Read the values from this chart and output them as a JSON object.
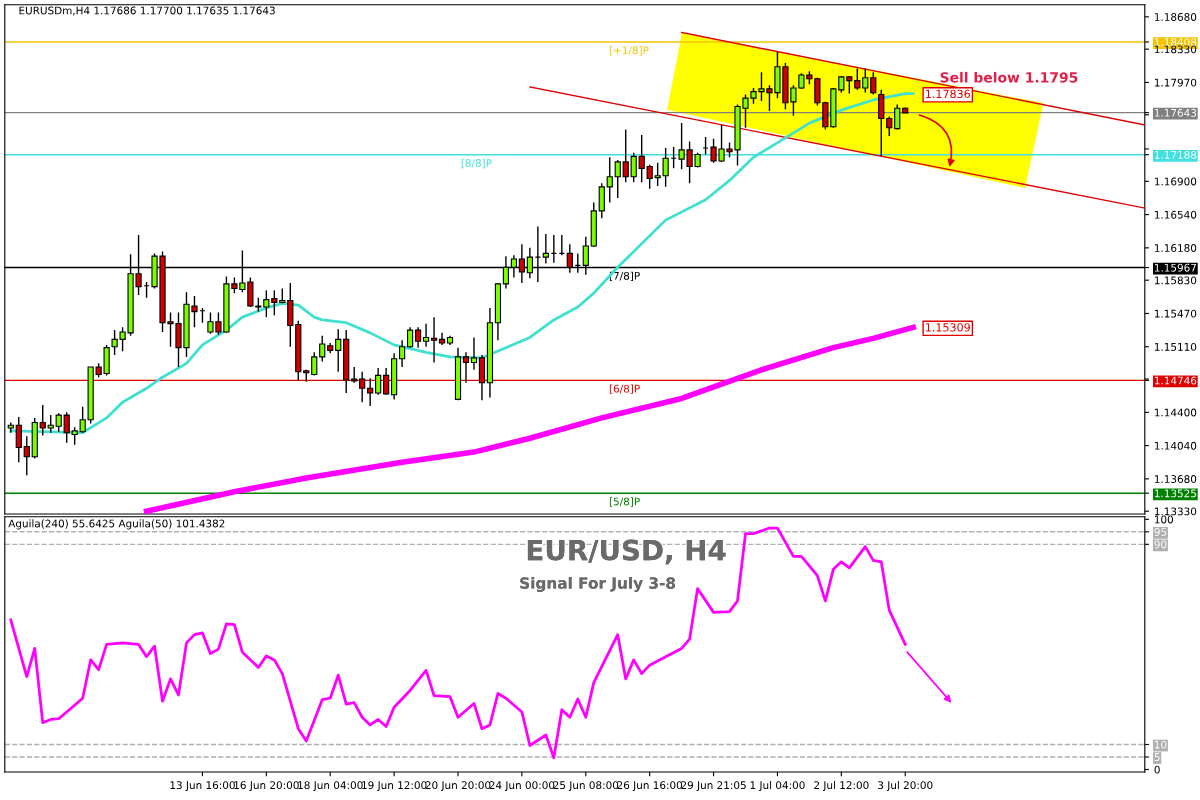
{
  "chart_data": [
    {
      "type": "candlestick",
      "title": "EURUSDm,H4 1.17686 1.17700 1.17635 1.17643",
      "categories": [
        null,
        null,
        null,
        null,
        null,
        null,
        null,
        null,
        null,
        null,
        null,
        null,
        null,
        null,
        null,
        null,
        null,
        null,
        null,
        null,
        null,
        null,
        null,
        null,
        null,
        null,
        null,
        null,
        null,
        null,
        null,
        null,
        null,
        null,
        null,
        null,
        null,
        null,
        null,
        null,
        null,
        null,
        null,
        null,
        null,
        null,
        null,
        null,
        null,
        null,
        null,
        null,
        null,
        null,
        null,
        null,
        null,
        null,
        null,
        null,
        null,
        null,
        null,
        null,
        null,
        null,
        null,
        null,
        null,
        null,
        null,
        null,
        null,
        null,
        null,
        null,
        null,
        null,
        null,
        null,
        null,
        null,
        null,
        null,
        null,
        null,
        null,
        null,
        null,
        null,
        null,
        null,
        null,
        null,
        null,
        null,
        null,
        null,
        null,
        null,
        null,
        null,
        null,
        null,
        null,
        null,
        null,
        null,
        null,
        null,
        null,
        null,
        null,
        null,
        null,
        null,
        null,
        null,
        null,
        null,
        null,
        null,
        null,
        null,
        null,
        null,
        null,
        null,
        null,
        null,
        null,
        null,
        null,
        null,
        null,
        null,
        null,
        null,
        null,
        null,
        null,
        null,
        null
      ],
      "ohlc": [
        [
          1.1423,
          1.1429,
          1.1418,
          1.1426
        ],
        [
          1.1426,
          1.1435,
          1.1386,
          1.1402
        ],
        [
          1.1403,
          1.1414,
          1.1372,
          1.1392
        ],
        [
          1.1392,
          1.1434,
          1.139,
          1.1429
        ],
        [
          1.1429,
          1.1448,
          1.1415,
          1.1423
        ],
        [
          1.1423,
          1.1437,
          1.1418,
          1.1426
        ],
        [
          1.1425,
          1.1439,
          1.1419,
          1.1437
        ],
        [
          1.1437,
          1.144,
          1.1407,
          1.1418
        ],
        [
          1.1416,
          1.1424,
          1.1405,
          1.142
        ],
        [
          1.1419,
          1.1446,
          1.1418,
          1.1432
        ],
        [
          1.1432,
          1.1489,
          1.1428,
          1.1489
        ],
        [
          1.1489,
          1.1493,
          1.1478,
          1.1481
        ],
        [
          1.1482,
          1.1513,
          1.148,
          1.151
        ],
        [
          1.1511,
          1.1529,
          1.1502,
          1.1519
        ],
        [
          1.1519,
          1.1532,
          1.1506,
          1.1527
        ],
        [
          1.1526,
          1.1611,
          1.1523,
          1.159
        ],
        [
          1.159,
          1.1632,
          1.1567,
          1.1576
        ],
        [
          1.1577,
          1.1581,
          1.1564,
          1.1577
        ],
        [
          1.1576,
          1.1612,
          1.1574,
          1.1609
        ],
        [
          1.1609,
          1.1614,
          1.1527,
          1.1537
        ],
        [
          1.1538,
          1.1548,
          1.1511,
          1.1536
        ],
        [
          1.1536,
          1.1548,
          1.1489,
          1.151
        ],
        [
          1.151,
          1.157,
          1.15,
          1.1557
        ],
        [
          1.1555,
          1.1566,
          1.1532,
          1.1549
        ],
        [
          1.155,
          1.1553,
          1.1537,
          1.155
        ],
        [
          1.1527,
          1.1548,
          1.1525,
          1.1538
        ],
        [
          1.1538,
          1.1548,
          1.1524,
          1.1527
        ],
        [
          1.1527,
          1.1587,
          1.1526,
          1.1579
        ],
        [
          1.1579,
          1.1586,
          1.1569,
          1.1574
        ],
        [
          1.1573,
          1.1615,
          1.157,
          1.158
        ],
        [
          1.1581,
          1.1586,
          1.1554,
          1.1555
        ],
        [
          1.1555,
          1.1564,
          1.1549,
          1.1554
        ],
        [
          1.1554,
          1.1572,
          1.1543,
          1.1562
        ],
        [
          1.1563,
          1.1572,
          1.1545,
          1.1559
        ],
        [
          1.1559,
          1.1574,
          1.1558,
          1.1561
        ],
        [
          1.1561,
          1.158,
          1.1511,
          1.1534
        ],
        [
          1.1535,
          1.1539,
          1.1474,
          1.1484
        ],
        [
          1.1485,
          1.1486,
          1.1473,
          1.1483
        ],
        [
          1.1481,
          1.1505,
          1.148,
          1.15
        ],
        [
          1.15,
          1.1523,
          1.1495,
          1.1514
        ],
        [
          1.1512,
          1.1515,
          1.1504,
          1.1507
        ],
        [
          1.1507,
          1.153,
          1.1484,
          1.1519
        ],
        [
          1.1519,
          1.1529,
          1.1461,
          1.1475
        ],
        [
          1.1476,
          1.1489,
          1.1472,
          1.1474
        ],
        [
          1.1476,
          1.1484,
          1.1451,
          1.1466
        ],
        [
          1.1466,
          1.1477,
          1.1447,
          1.1461
        ],
        [
          1.1461,
          1.1488,
          1.1459,
          1.148
        ],
        [
          1.148,
          1.1488,
          1.1459,
          1.146
        ],
        [
          1.1459,
          1.1504,
          1.1454,
          1.1498
        ],
        [
          1.1498,
          1.1518,
          1.1489,
          1.1511
        ],
        [
          1.1511,
          1.1532,
          1.151,
          1.1529
        ],
        [
          1.1529,
          1.1532,
          1.151,
          1.1517
        ],
        [
          1.1517,
          1.1536,
          1.1511,
          1.1521
        ],
        [
          1.152,
          1.1543,
          1.1494,
          1.1518
        ],
        [
          1.1519,
          1.1526,
          1.1513,
          1.1515
        ],
        [
          1.1515,
          1.1523,
          1.1513,
          1.1521
        ],
        [
          1.1454,
          1.151,
          1.1453,
          1.15
        ],
        [
          1.15,
          1.1505,
          1.1472,
          1.1494
        ],
        [
          1.1494,
          1.1521,
          1.1486,
          1.1499
        ],
        [
          1.1499,
          1.1502,
          1.1453,
          1.1472
        ],
        [
          1.1472,
          1.1553,
          1.1456,
          1.1537
        ],
        [
          1.1537,
          1.158,
          1.1518,
          1.1579
        ],
        [
          1.1579,
          1.1609,
          1.1574,
          1.1597
        ],
        [
          1.1597,
          1.161,
          1.1586,
          1.1606
        ],
        [
          1.1606,
          1.1622,
          1.158,
          1.1592
        ],
        [
          1.1591,
          1.1618,
          1.1585,
          1.1608
        ],
        [
          1.1608,
          1.1641,
          1.1581,
          1.1608
        ],
        [
          1.1608,
          1.1633,
          1.1601,
          1.1612
        ],
        [
          1.1612,
          1.1632,
          1.1602,
          1.1612
        ],
        [
          1.1612,
          1.1632,
          1.161,
          1.1612
        ],
        [
          1.1612,
          1.1622,
          1.1591,
          1.1597
        ],
        [
          1.1599,
          1.1612,
          1.1591,
          1.1599
        ],
        [
          1.1599,
          1.163,
          1.1589,
          1.162
        ],
        [
          1.162,
          1.1667,
          1.1619,
          1.1658
        ],
        [
          1.1658,
          1.1688,
          1.165,
          1.1684
        ],
        [
          1.1684,
          1.1716,
          1.1667,
          1.1695
        ],
        [
          1.1695,
          1.1713,
          1.1672,
          1.1711
        ],
        [
          1.1711,
          1.1746,
          1.1689,
          1.1695
        ],
        [
          1.1695,
          1.1721,
          1.1689,
          1.1717
        ],
        [
          1.1717,
          1.174,
          1.1689,
          1.1704
        ],
        [
          1.1706,
          1.1708,
          1.1682,
          1.1693
        ],
        [
          1.1694,
          1.171,
          1.1685,
          1.1696
        ],
        [
          1.1696,
          1.1726,
          1.1684,
          1.1715
        ],
        [
          1.1715,
          1.1727,
          1.1704,
          1.1715
        ],
        [
          1.1714,
          1.1753,
          1.1703,
          1.1724
        ],
        [
          1.1724,
          1.1733,
          1.1688,
          1.1706
        ],
        [
          1.1706,
          1.1721,
          1.1705,
          1.1719
        ],
        [
          1.1726,
          1.1738,
          1.1719,
          1.1726
        ],
        [
          1.1727,
          1.1736,
          1.171,
          1.1712
        ],
        [
          1.1712,
          1.1751,
          1.1711,
          1.1725
        ],
        [
          1.1725,
          1.1732,
          1.1716,
          1.1722
        ],
        [
          1.1724,
          1.1773,
          1.1707,
          1.1771
        ],
        [
          1.1769,
          1.1784,
          1.1748,
          1.178
        ],
        [
          1.178,
          1.1791,
          1.1774,
          1.1787
        ],
        [
          1.1787,
          1.1808,
          1.1777,
          1.179
        ],
        [
          1.179,
          1.1794,
          1.1766,
          1.1786
        ],
        [
          1.1786,
          1.183,
          1.178,
          1.1814
        ],
        [
          1.1814,
          1.1818,
          1.1768,
          1.1775
        ],
        [
          1.1776,
          1.1794,
          1.1761,
          1.1791
        ],
        [
          1.1791,
          1.1807,
          1.179,
          1.1805
        ],
        [
          1.1805,
          1.1809,
          1.1795,
          1.1801
        ],
        [
          1.1801,
          1.1802,
          1.1772,
          1.1775
        ],
        [
          1.1775,
          1.1776,
          1.1746,
          1.1749
        ],
        [
          1.1749,
          1.1791,
          1.1748,
          1.179
        ],
        [
          1.1789,
          1.1804,
          1.1786,
          1.1803
        ],
        [
          1.1803,
          1.1804,
          1.1785,
          1.1799
        ],
        [
          1.1799,
          1.1812,
          1.1789,
          1.1791
        ],
        [
          1.1791,
          1.1812,
          1.1786,
          1.1802
        ],
        [
          1.1802,
          1.1808,
          1.1784,
          1.1786
        ],
        [
          1.1784,
          1.1789,
          1.1717,
          1.1758
        ],
        [
          1.1758,
          1.176,
          1.1739,
          1.1748
        ],
        [
          1.1747,
          1.1773,
          1.1746,
          1.1769
        ],
        [
          1.1769,
          1.177,
          1.1764,
          1.1764
        ],
        null,
        null,
        null,
        null,
        null,
        null,
        null,
        null,
        null,
        null,
        null,
        null,
        null,
        null,
        null,
        null,
        null,
        null,
        null,
        null,
        null,
        null,
        null,
        null,
        null,
        null,
        null,
        null,
        null,
        null
      ],
      "colors": [
        "#7cfc00",
        "#d00000",
        "#d00000",
        "#7cfc00",
        "#d00000",
        "#7cfc00",
        "#7cfc00",
        "#d00000",
        "#7cfc00",
        "#7cfc00",
        "#7cfc00",
        "#d00000",
        "#7cfc00",
        "#7cfc00",
        "#7cfc00",
        "#7cfc00",
        "#d00000",
        "#000000",
        "#7cfc00",
        "#d00000",
        "#d00000",
        "#d00000",
        "#7cfc00",
        "#d00000",
        "#000000",
        "#7cfc00",
        "#d00000",
        "#7cfc00",
        "#d00000",
        "#7cfc00",
        "#d00000",
        "#d00000",
        "#7cfc00",
        "#d00000",
        "#7cfc00",
        "#d00000",
        "#d00000",
        "#d00000",
        "#7cfc00",
        "#7cfc00",
        "#d00000",
        "#7cfc00",
        "#d00000",
        "#d00000",
        "#d00000",
        "#d00000",
        "#7cfc00",
        "#d00000",
        "#7cfc00",
        "#7cfc00",
        "#7cfc00",
        "#d00000",
        "#7cfc00",
        "#d00000",
        "#d00000",
        "#7cfc00",
        "#7cfc00",
        "#d00000",
        "#7cfc00",
        "#d00000",
        "#7cfc00",
        "#7cfc00",
        "#7cfc00",
        "#7cfc00",
        "#d00000",
        "#7cfc00",
        "#000000",
        "#7cfc00",
        "#000000",
        "#000000",
        "#d00000",
        "#000000",
        "#7cfc00",
        "#7cfc00",
        "#7cfc00",
        "#7cfc00",
        "#7cfc00",
        "#d00000",
        "#7cfc00",
        "#d00000",
        "#d00000",
        "#7cfc00",
        "#7cfc00",
        "#000000",
        "#7cfc00",
        "#d00000",
        "#7cfc00",
        "#000000",
        "#d00000",
        "#7cfc00",
        "#d00000",
        "#7cfc00",
        "#7cfc00",
        "#7cfc00",
        "#7cfc00",
        "#d00000",
        "#7cfc00",
        "#d00000",
        "#7cfc00",
        "#7cfc00",
        "#d00000",
        "#d00000",
        "#d00000",
        "#7cfc00",
        "#7cfc00",
        "#d00000",
        "#d00000",
        "#7cfc00",
        "#d00000",
        "#d00000",
        "#d00000",
        "#7cfc00",
        "#d00000",
        null,
        null,
        null,
        null,
        null,
        null,
        null,
        null,
        null,
        null,
        null,
        null,
        null,
        null,
        null,
        null,
        null,
        null,
        null,
        null,
        null,
        null,
        null,
        null,
        null,
        null,
        null,
        null,
        null,
        null
      ],
      "series": [
        {
          "type": "line",
          "color": "#e00000",
          "values": [
            null,
            null,
            null,
            null,
            null,
            null,
            null,
            null,
            null,
            null,
            null,
            null,
            null,
            null,
            null,
            null,
            null,
            null,
            null,
            null,
            null,
            null,
            null,
            null,
            null,
            null,
            null,
            null,
            null,
            null,
            null,
            null,
            null,
            null,
            null,
            null,
            null,
            null,
            null,
            null,
            null,
            null,
            null,
            null,
            null,
            null,
            null,
            null,
            null,
            null,
            null,
            null,
            null,
            null,
            null,
            null,
            null,
            null,
            null,
            null,
            null,
            null,
            null,
            null,
            null,
            null,
            null,
            null,
            null,
            null,
            null,
            null,
            null,
            null,
            null,
            null,
            null,
            null,
            null,
            null,
            null,
            null,
            null,
            null,
            1.1851,
            null,
            null,
            null,
            null,
            null,
            null,
            null,
            null,
            null,
            null,
            null,
            null,
            null,
            null,
            null,
            null,
            null,
            null,
            null,
            null,
            null,
            null,
            null,
            null,
            null,
            null,
            null,
            null,
            null,
            null,
            null,
            null,
            null,
            null,
            null,
            null,
            null,
            null,
            null,
            null,
            null,
            null,
            null,
            null,
            null,
            null,
            null,
            null,
            null,
            null,
            null,
            null,
            null,
            null,
            null,
            null,
            null,
            1.1751
          ]
        },
        {
          "type": "line",
          "color": "#e00000",
          "values": [
            null,
            null,
            null,
            null,
            null,
            null,
            null,
            null,
            null,
            null,
            null,
            null,
            null,
            null,
            null,
            null,
            null,
            null,
            null,
            null,
            null,
            null,
            null,
            null,
            null,
            null,
            null,
            null,
            null,
            null,
            null,
            null,
            null,
            null,
            null,
            null,
            null,
            null,
            null,
            null,
            null,
            null,
            null,
            null,
            null,
            null,
            null,
            null,
            null,
            null,
            null,
            null,
            null,
            null,
            null,
            null,
            null,
            null,
            null,
            null,
            null,
            null,
            null,
            null,
            null,
            1.1792,
            null,
            null,
            null,
            null,
            null,
            null,
            null,
            null,
            null,
            null,
            null,
            null,
            null,
            null,
            null,
            null,
            null,
            null,
            null,
            null,
            null,
            null,
            null,
            null,
            null,
            null,
            null,
            null,
            null,
            null,
            null,
            null,
            null,
            null,
            null,
            null,
            null,
            null,
            null,
            null,
            null,
            null,
            null,
            null,
            null,
            null,
            null,
            null,
            null,
            null,
            null,
            null,
            null,
            null,
            null,
            null,
            null,
            null,
            null,
            null,
            null,
            null,
            null,
            null,
            null,
            null,
            null,
            null,
            null,
            null,
            null,
            null,
            null,
            null,
            null,
            null,
            1.1661
          ]
        },
        {
          "type": "line",
          "color": "#40e0d0",
          "values": [
            1.142,
            null,
            null,
            null,
            null,
            null,
            null,
            null,
            null,
            1.1418,
            null,
            null,
            1.1434,
            null,
            1.1451,
            null,
            null,
            1.1466,
            null,
            1.1478,
            null,
            null,
            1.1493,
            null,
            1.1513,
            null,
            null,
            1.1529,
            null,
            1.1543,
            null,
            null,
            1.1553,
            null,
            1.1558,
            null,
            1.1556,
            null,
            1.1543,
            1.154,
            null,
            null,
            1.1537,
            null,
            null,
            1.1526,
            null,
            null,
            1.1513,
            null,
            null,
            null,
            1.1505,
            null,
            null,
            1.15,
            null,
            null,
            null,
            1.1499,
            null,
            null,
            1.151,
            null,
            null,
            1.1521,
            null,
            null,
            1.154,
            null,
            null,
            1.1554,
            null,
            1.1569,
            null,
            null,
            1.1597,
            null,
            null,
            null,
            null,
            null,
            1.1648,
            null,
            null,
            null,
            null,
            1.167,
            null,
            null,
            1.1691,
            null,
            null,
            1.1716,
            null,
            null,
            null,
            1.1737,
            null,
            null,
            1.1753,
            null,
            null,
            null,
            1.1767,
            null,
            null,
            null,
            1.1778,
            null,
            null,
            null,
            1.1785,
            1.1785,
            null,
            null,
            null,
            null,
            null,
            null,
            null,
            null,
            null,
            null,
            null,
            null,
            null,
            null,
            null,
            null,
            null,
            null,
            null,
            null,
            null,
            null,
            null,
            null,
            null,
            null,
            null,
            null,
            null
          ]
        },
        {
          "type": "line",
          "color": "#ff00ff",
          "values": [
            null,
            null,
            null,
            null,
            null,
            null,
            null,
            null,
            null,
            null,
            null,
            null,
            null,
            null,
            null,
            null,
            null,
            1.1333,
            null,
            null,
            null,
            null,
            null,
            null,
            null,
            null,
            null,
            null,
            1.1354,
            null,
            null,
            null,
            null,
            null,
            null,
            null,
            null,
            1.1369,
            null,
            null,
            null,
            null,
            null,
            null,
            null,
            null,
            null,
            null,
            null,
            1.1386,
            null,
            null,
            null,
            null,
            null,
            null,
            null,
            null,
            1.1397,
            null,
            null,
            null,
            null,
            null,
            null,
            1.1412,
            null,
            null,
            null,
            null,
            null,
            null,
            null,
            null,
            1.1434,
            null,
            null,
            null,
            null,
            null,
            null,
            null,
            null,
            null,
            1.1455,
            null,
            null,
            null,
            null,
            null,
            null,
            null,
            null,
            null,
            1.1486,
            null,
            null,
            null,
            null,
            null,
            null,
            null,
            null,
            1.151,
            null,
            null,
            null,
            null,
            1.152,
            null,
            null,
            null,
            null,
            1.1532,
            null,
            null,
            null,
            null,
            null,
            null,
            null,
            null,
            null,
            null,
            null,
            null,
            null,
            null,
            null,
            null,
            null,
            null,
            null,
            null,
            null,
            null,
            null,
            null,
            null,
            null,
            null,
            null,
            null
          ]
        }
      ],
      "ylim": [
        1.133,
        1.1881
      ],
      "yticks": [
        {
          "value": 1.18408,
          "label": "1.18408"
        },
        {
          "value": 1.17643,
          "label": "1.17643"
        },
        {
          "value": 1.17188,
          "label": "1.17188"
        },
        {
          "value": 1.15967,
          "label": "1.15967"
        },
        {
          "value": 1.14746,
          "label": "1.14746"
        },
        {
          "value": 1.13525,
          "label": "1.13525"
        },
        {
          "value": 1.1868,
          "label": "1.18680"
        },
        {
          "value": 1.1833,
          "label": "1.18330"
        },
        {
          "value": 1.1797,
          "label": "1.17970"
        },
        {
          "value": 1.1762,
          "label": null
        },
        {
          "value": 1.1725,
          "label": null
        },
        {
          "value": 1.169,
          "label": "1.16900"
        },
        {
          "value": 1.1654,
          "label": "1.16540"
        },
        {
          "value": 1.1618,
          "label": "1.16180"
        },
        {
          "value": 1.1583,
          "label": "1.15830"
        },
        {
          "value": 1.1547,
          "label": "1.15470"
        },
        {
          "value": 1.1511,
          "label": "1.15110"
        },
        {
          "value": 1.1476,
          "label": null
        },
        {
          "value": 1.144,
          "label": "1.14400"
        },
        {
          "value": 1.1404,
          "label": "1.14040"
        },
        {
          "value": 1.1368,
          "label": "1.13680"
        },
        {
          "value": 1.1333,
          "label": "1.13330"
        }
      ],
      "tick_labels": "y",
      "ref_lines": [
        {
          "axis": "y",
          "value": 1.18408,
          "label": "[+1/8]P",
          "color": "#f2c500"
        },
        {
          "axis": "y",
          "value": 1.17643,
          "color": "#808080"
        },
        {
          "axis": "y",
          "value": 1.17188,
          "label": "[8/8]P",
          "color": "#40e0e0"
        },
        {
          "axis": "y",
          "value": 1.15967,
          "label": "[7/8]P",
          "color": "#000000"
        },
        {
          "axis": "y",
          "value": 1.14746,
          "label": "[6/8]P",
          "color": "#e00000"
        },
        {
          "axis": "y",
          "value": 1.13525,
          "label": "[5/8]P",
          "color": "#008000"
        }
      ],
      "annotations": [
        "Sell below 1.1795",
        "1.17836",
        "1.15309"
      ]
    },
    {
      "type": "line",
      "subtitle": "Aguila(240) 55.6425 Aguila(50) 101.4382",
      "categories": [
        null,
        null,
        null,
        null,
        null,
        null,
        null,
        null,
        null,
        null,
        null,
        null,
        null,
        null,
        null,
        null,
        null,
        null,
        null,
        null,
        null,
        null,
        null,
        null,
        "13 Jun 16:00",
        null,
        null,
        null,
        null,
        null,
        null,
        null,
        "16 Jun 20:00",
        null,
        null,
        null,
        null,
        null,
        null,
        null,
        "18 Jun 04:00",
        null,
        null,
        null,
        null,
        null,
        null,
        null,
        "19 Jun 12:00",
        null,
        null,
        null,
        null,
        null,
        null,
        null,
        "20 Jun 20:00",
        null,
        null,
        null,
        null,
        null,
        null,
        null,
        "24 Jun 00:00",
        null,
        null,
        null,
        null,
        null,
        null,
        null,
        "25 Jun 08:00",
        null,
        null,
        null,
        null,
        null,
        null,
        null,
        "26 Jun 16:00",
        null,
        null,
        null,
        null,
        null,
        null,
        null,
        "29 Jun 21:05",
        null,
        null,
        null,
        null,
        null,
        null,
        null,
        "1 Jul 04:00",
        null,
        null,
        null,
        null,
        null,
        null,
        null,
        "2 Jul 12:00",
        null,
        null,
        null,
        null,
        null,
        null,
        null,
        "3 Jul 20:00",
        null,
        null,
        null,
        null,
        null,
        null,
        null,
        null,
        null,
        null,
        null,
        null,
        null,
        null,
        null,
        null,
        null,
        null,
        null,
        null,
        null,
        null,
        null,
        null,
        null,
        null,
        null,
        null,
        null,
        null
      ],
      "series": [
        {
          "color": "#ff00ff",
          "values": [
            59.8,
            null,
            37.1,
            48.4,
            18.7,
            20.0,
            20.3,
            23.0,
            null,
            28.5,
            43.8,
            39.9,
            50.0,
            null,
            50.6,
            null,
            50.0,
            45.1,
            49.3,
            27.3,
            36.2,
            29.8,
            50.6,
            53.9,
            54.6,
            46.3,
            48.1,
            58.2,
            57.9,
            46.9,
            null,
            40.8,
            45.4,
            43.8,
            38.3,
            null,
            16.3,
            11.4,
            null,
            27.9,
            28.5,
            37.7,
            26.1,
            26.7,
            20.9,
            17.8,
            20.0,
            17.2,
            24.9,
            null,
            31.6,
            null,
            39.6,
            29.5,
            null,
            29.1,
            20.9,
            null,
            26.4,
            16.3,
            17.8,
            30.4,
            28.5,
            null,
            23.0,
            9.6,
            null,
            13.8,
            4.7,
            23.9,
            20.9,
            28.2,
            20.9,
            34.7,
            null,
            null,
            53.9,
            36.2,
            43.8,
            38.3,
            41.7,
            null,
            45.1,
            null,
            48.4,
            52.1,
            72.3,
            null,
            62.8,
            null,
            63.1,
            67.4,
            94.3,
            94.3,
            null,
            96.5,
            96.5,
            null,
            85.2,
            85.2,
            null,
            77.5,
            67.4,
            80.0,
            83.0,
            80.6,
            null,
            89.1,
            83.6,
            83.0,
            63.7,
            null,
            50.0,
            null,
            null,
            null,
            null,
            null,
            null,
            null,
            null,
            null,
            null,
            null,
            null,
            null,
            null,
            null,
            null,
            null,
            null,
            null,
            null,
            null,
            null,
            null,
            null,
            null,
            null,
            null,
            null,
            null,
            null
          ]
        }
      ],
      "ylim": [
        -1,
        101
      ],
      "yticks": [
        0,
        5,
        10,
        90,
        95,
        100
      ],
      "ref_lines": [
        {
          "axis": "y",
          "value": 5,
          "color": "#b0b0b0",
          "line_style": "dashed"
        },
        {
          "axis": "y",
          "value": 10,
          "color": "#b0b0b0",
          "line_style": "dashed"
        },
        {
          "axis": "y",
          "value": 90,
          "color": "#b0b0b0",
          "line_style": "dashed"
        },
        {
          "axis": "y",
          "value": 95,
          "color": "#b0b0b0",
          "line_style": "dashed"
        }
      ],
      "annotations": [
        "EUR/USD, H4",
        "Signal For July 3-8"
      ]
    }
  ]
}
